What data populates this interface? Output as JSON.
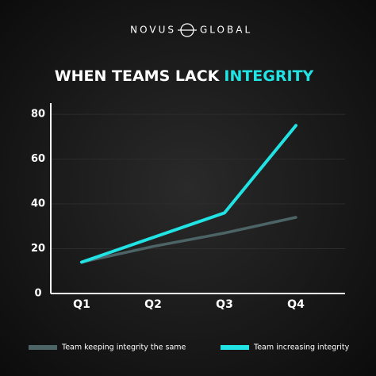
{
  "chart_data": {
    "type": "line",
    "brand_left": "NOVUS",
    "brand_right": "GLOBAL",
    "title": "WHEN TEAMS LACK",
    "title_highlight": "INTEGRITY",
    "categories": [
      "Q1",
      "Q2",
      "Q3",
      "Q4"
    ],
    "series": [
      {
        "name": "Team keeping integrity the same",
        "color": "#4d6466",
        "values": [
          14,
          21,
          27,
          34
        ]
      },
      {
        "name": "Team increasing integrity",
        "color": "#21e3e3",
        "values": [
          14,
          25,
          36,
          75
        ]
      }
    ],
    "ylim": [
      0,
      85
    ],
    "yticks": [
      0,
      20,
      40,
      60,
      80
    ],
    "grid": true
  }
}
